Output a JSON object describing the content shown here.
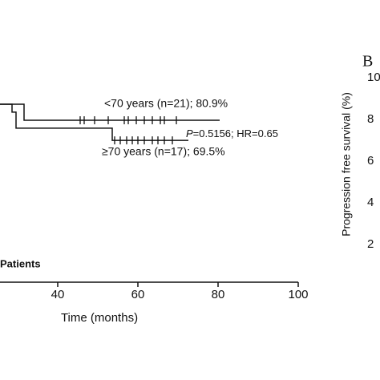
{
  "chart_data": [
    {
      "type": "line",
      "x_label": "Time (months)",
      "subgroup_label": "Patients",
      "xlim": [
        25.6,
        100
      ],
      "xticks": [
        40,
        60,
        80,
        100
      ],
      "ylim": [
        0,
        100
      ],
      "annotations": [
        {
          "text": "<70 years (n=21); 80.9%"
        },
        {
          "italic": "P",
          "text": "=0.5156; HR=0.65"
        },
        {
          "text": "≥70 years (n=17); 69.5%"
        }
      ],
      "series": [
        {
          "name": "<70 years",
          "color": "#111111",
          "x": [
            25.6,
            31.6,
            31.6,
            80.4
          ],
          "values": [
            90,
            90,
            80.9,
            80.9
          ],
          "censored_x": [
            45.6,
            46.6,
            49.2,
            52.6,
            56.6,
            57.6,
            59.6,
            61.6,
            63.6,
            65.6,
            66.6,
            69.6
          ]
        },
        {
          "name": "≥70 years",
          "color": "#111111",
          "x": [
            25.6,
            28.6,
            28.6,
            29.6,
            29.6,
            53.6,
            53.6,
            72.6
          ],
          "values": [
            90,
            90,
            85.5,
            85.5,
            76.4,
            76.4,
            69.5,
            69.5
          ],
          "censored_x": [
            54.2,
            55.6,
            57.2,
            58.6,
            60,
            61.6,
            63.6,
            65,
            66.6,
            68.6
          ]
        }
      ]
    },
    {
      "type": "line",
      "panel_label": "B",
      "y_label": "Progression free survival (%)",
      "ytick_texts": [
        "10",
        "8",
        "6",
        "4",
        "2"
      ]
    }
  ]
}
